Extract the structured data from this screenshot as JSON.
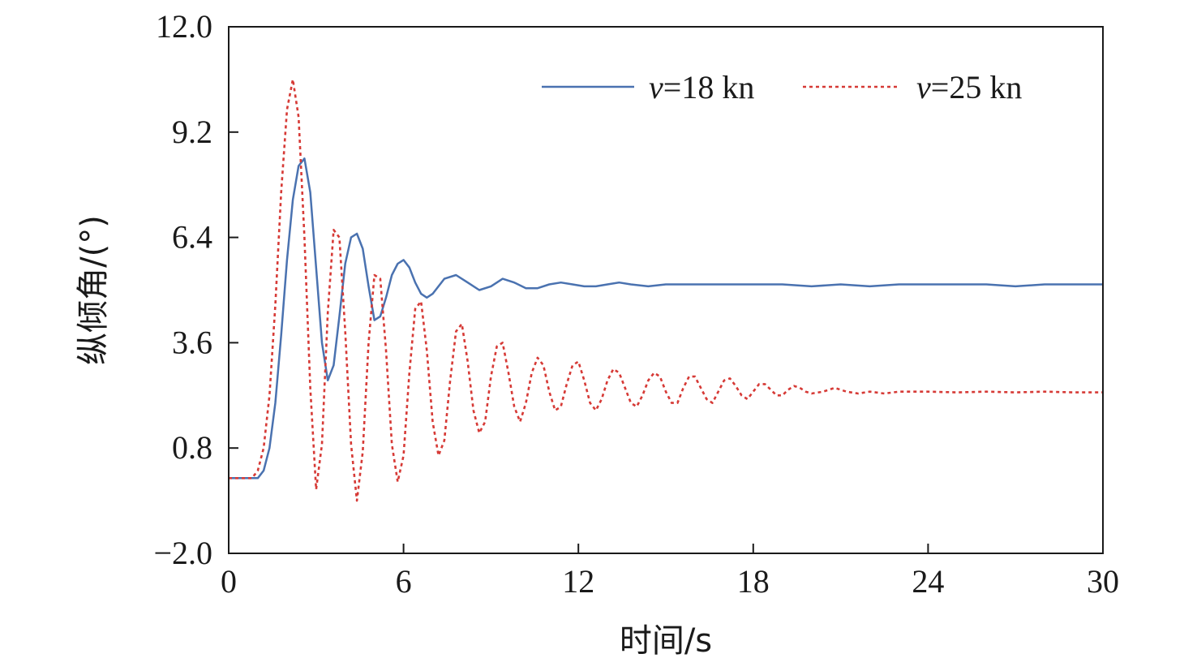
{
  "chart_data": {
    "type": "line",
    "xlabel": "时间/s",
    "ylabel": "纵倾角/(°)",
    "xlim": [
      0,
      30
    ],
    "ylim": [
      -2.0,
      12.0
    ],
    "x_ticks": [
      "0",
      "6",
      "12",
      "18",
      "24",
      "30"
    ],
    "y_ticks": [
      "−2.0",
      "0.8",
      "3.6",
      "6.4",
      "9.2",
      "12.0"
    ],
    "grid": false,
    "legend_position": "top-right",
    "series": [
      {
        "name_var": "v",
        "name_rest": "=18 kn",
        "color": "#4a72b0",
        "style": "solid",
        "x": [
          0,
          0.5,
          0.8,
          1.0,
          1.2,
          1.4,
          1.6,
          1.8,
          2.0,
          2.2,
          2.4,
          2.6,
          2.8,
          3.0,
          3.2,
          3.4,
          3.6,
          3.8,
          4.0,
          4.2,
          4.4,
          4.6,
          4.8,
          5.0,
          5.2,
          5.4,
          5.6,
          5.8,
          6.0,
          6.2,
          6.4,
          6.6,
          6.8,
          7.0,
          7.4,
          7.8,
          8.2,
          8.6,
          9.0,
          9.4,
          9.8,
          10.2,
          10.6,
          11.0,
          11.4,
          11.8,
          12.2,
          12.6,
          13.0,
          13.4,
          13.8,
          14.4,
          15.0,
          16.0,
          17.0,
          18.0,
          19.0,
          20.0,
          21.0,
          22.0,
          23.0,
          24.0,
          25.0,
          26.0,
          27.0,
          28.0,
          29.0,
          30.0
        ],
        "y": [
          0.0,
          0.0,
          0.0,
          0.0,
          0.2,
          0.8,
          2.0,
          3.8,
          5.8,
          7.4,
          8.3,
          8.5,
          7.6,
          5.6,
          3.6,
          2.6,
          3.0,
          4.3,
          5.7,
          6.4,
          6.5,
          6.1,
          5.1,
          4.2,
          4.3,
          4.8,
          5.4,
          5.7,
          5.8,
          5.6,
          5.2,
          4.9,
          4.8,
          4.9,
          5.3,
          5.4,
          5.2,
          5.0,
          5.1,
          5.3,
          5.2,
          5.05,
          5.05,
          5.15,
          5.2,
          5.15,
          5.1,
          5.1,
          5.15,
          5.2,
          5.15,
          5.1,
          5.15,
          5.15,
          5.15,
          5.15,
          5.15,
          5.1,
          5.15,
          5.1,
          5.15,
          5.15,
          5.15,
          5.15,
          5.1,
          5.15,
          5.15,
          5.15
        ]
      },
      {
        "name_var": "v",
        "name_rest": "=25 kn",
        "color": "#d63a36",
        "style": "dotted",
        "x": [
          0,
          0.5,
          0.8,
          1.0,
          1.2,
          1.4,
          1.6,
          1.8,
          2.0,
          2.2,
          2.4,
          2.6,
          2.8,
          3.0,
          3.2,
          3.4,
          3.6,
          3.8,
          4.0,
          4.2,
          4.4,
          4.6,
          4.8,
          5.0,
          5.2,
          5.4,
          5.6,
          5.8,
          6.0,
          6.2,
          6.4,
          6.6,
          6.8,
          7.0,
          7.2,
          7.4,
          7.6,
          7.8,
          8.0,
          8.2,
          8.4,
          8.6,
          8.8,
          9.0,
          9.2,
          9.4,
          9.6,
          9.8,
          10.0,
          10.2,
          10.4,
          10.6,
          10.8,
          11.0,
          11.2,
          11.4,
          11.6,
          11.8,
          12.0,
          12.2,
          12.4,
          12.6,
          12.8,
          13.0,
          13.2,
          13.4,
          13.6,
          13.8,
          14.0,
          14.2,
          14.4,
          14.6,
          14.8,
          15.0,
          15.2,
          15.4,
          15.6,
          15.8,
          16.0,
          16.2,
          16.4,
          16.6,
          16.8,
          17.0,
          17.2,
          17.4,
          17.6,
          17.8,
          18.0,
          18.2,
          18.4,
          18.6,
          18.8,
          19.0,
          19.2,
          19.4,
          19.6,
          19.8,
          20.0,
          20.4,
          20.8,
          21.2,
          21.6,
          22.0,
          22.5,
          23.0,
          24.0,
          25.0,
          26.0,
          27.0,
          28.0,
          29.0,
          30.0
        ],
        "y": [
          0.0,
          0.0,
          0.0,
          0.2,
          0.8,
          2.2,
          4.6,
          7.6,
          9.8,
          10.6,
          9.6,
          6.4,
          2.4,
          -0.3,
          0.9,
          4.4,
          6.6,
          6.4,
          3.9,
          0.9,
          -0.6,
          0.7,
          3.6,
          5.4,
          5.3,
          3.4,
          0.9,
          -0.1,
          0.6,
          2.8,
          4.5,
          4.7,
          3.4,
          1.5,
          0.6,
          1.0,
          2.6,
          3.9,
          4.1,
          3.1,
          1.8,
          1.2,
          1.5,
          2.7,
          3.5,
          3.6,
          2.8,
          1.9,
          1.5,
          2.0,
          2.8,
          3.2,
          3.0,
          2.3,
          1.8,
          1.9,
          2.5,
          3.0,
          3.1,
          2.6,
          2.0,
          1.8,
          2.1,
          2.6,
          2.9,
          2.8,
          2.4,
          2.0,
          1.9,
          2.2,
          2.6,
          2.8,
          2.7,
          2.3,
          2.0,
          2.0,
          2.4,
          2.7,
          2.7,
          2.4,
          2.1,
          2.0,
          2.3,
          2.6,
          2.65,
          2.45,
          2.2,
          2.1,
          2.3,
          2.5,
          2.5,
          2.35,
          2.2,
          2.2,
          2.35,
          2.45,
          2.4,
          2.3,
          2.25,
          2.3,
          2.4,
          2.3,
          2.25,
          2.3,
          2.25,
          2.3,
          2.3,
          2.28,
          2.3,
          2.28,
          2.3,
          2.28,
          2.28
        ]
      }
    ]
  }
}
